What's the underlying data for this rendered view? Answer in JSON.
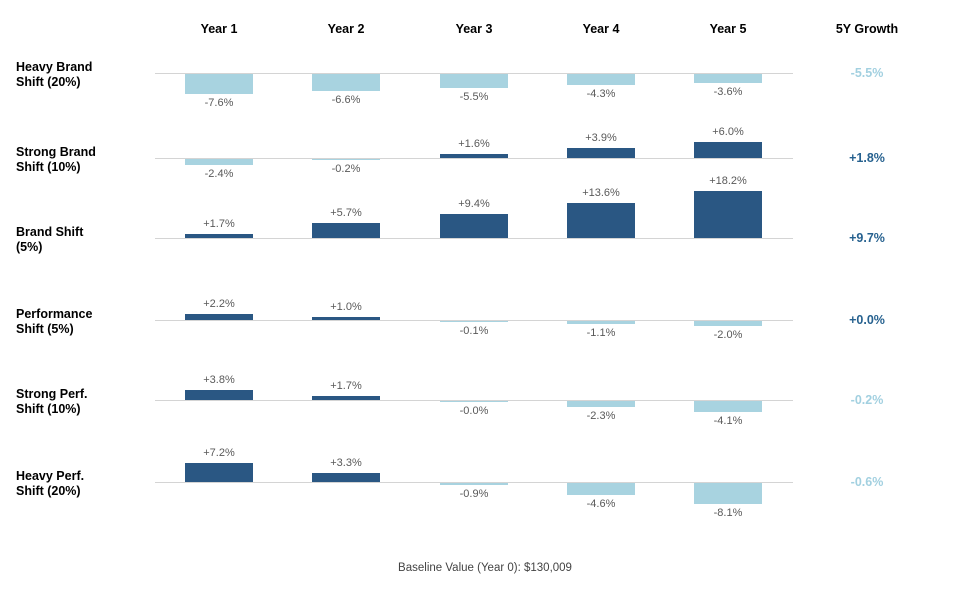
{
  "chart_data": {
    "type": "bar",
    "layout": "small-multiples-rows",
    "title": "",
    "columns": [
      "Year 1",
      "Year 2",
      "Year 3",
      "Year 4",
      "Year 5"
    ],
    "growth_column_header": "5Y Growth",
    "rows": [
      {
        "label_lines": [
          "Heavy Brand",
          "Shift (20%)"
        ],
        "values": [
          -7.6,
          -6.6,
          -5.5,
          -4.3,
          -3.6
        ],
        "value_labels": [
          "-7.6%",
          "-6.6%",
          "-5.5%",
          "-4.3%",
          "-3.6%"
        ],
        "growth_label": "-5.5%",
        "growth_sign": "negative"
      },
      {
        "label_lines": [
          "Strong Brand",
          "Shift (10%)"
        ],
        "values": [
          -2.4,
          -0.2,
          1.6,
          3.9,
          6.0
        ],
        "value_labels": [
          "-2.4%",
          "-0.2%",
          "+1.6%",
          "+3.9%",
          "+6.0%"
        ],
        "growth_label": "+1.8%",
        "growth_sign": "positive"
      },
      {
        "label_lines": [
          "Brand Shift",
          "(5%)"
        ],
        "values": [
          1.7,
          5.7,
          9.4,
          13.6,
          18.2
        ],
        "value_labels": [
          "+1.7%",
          "+5.7%",
          "+9.4%",
          "+13.6%",
          "+18.2%"
        ],
        "growth_label": "+9.7%",
        "growth_sign": "positive"
      },
      {
        "label_lines": [
          "Performance",
          "Shift (5%)"
        ],
        "values": [
          2.2,
          1.0,
          -0.1,
          -1.1,
          -2.0
        ],
        "value_labels": [
          "+2.2%",
          "+1.0%",
          "-0.1%",
          "-1.1%",
          "-2.0%"
        ],
        "growth_label": "+0.0%",
        "growth_sign": "positive"
      },
      {
        "label_lines": [
          "Strong Perf.",
          "Shift (10%)"
        ],
        "values": [
          3.8,
          1.7,
          -0.0,
          -2.3,
          -4.1
        ],
        "value_labels": [
          "+3.8%",
          "+1.7%",
          "-0.0%",
          "-2.3%",
          "-4.1%"
        ],
        "growth_label": "-0.2%",
        "growth_sign": "negative"
      },
      {
        "label_lines": [
          "Heavy Perf.",
          "Shift (20%)"
        ],
        "values": [
          7.2,
          3.3,
          -0.9,
          -4.6,
          -8.1
        ],
        "value_labels": [
          "+7.2%",
          "+3.3%",
          "-0.9%",
          "-4.6%",
          "-8.1%"
        ],
        "growth_label": "-0.6%",
        "growth_sign": "negative"
      }
    ],
    "footer": "Baseline Value (Year 0): $130,009",
    "colors": {
      "positive_bar": "#2a5783",
      "negative_bar": "#a8d3e0",
      "growth_positive": "#26618f",
      "growth_negative": "#a2d0e0",
      "value_label": "#595959",
      "header_text": "#000000",
      "baseline_line": "#d4d4d4"
    }
  }
}
